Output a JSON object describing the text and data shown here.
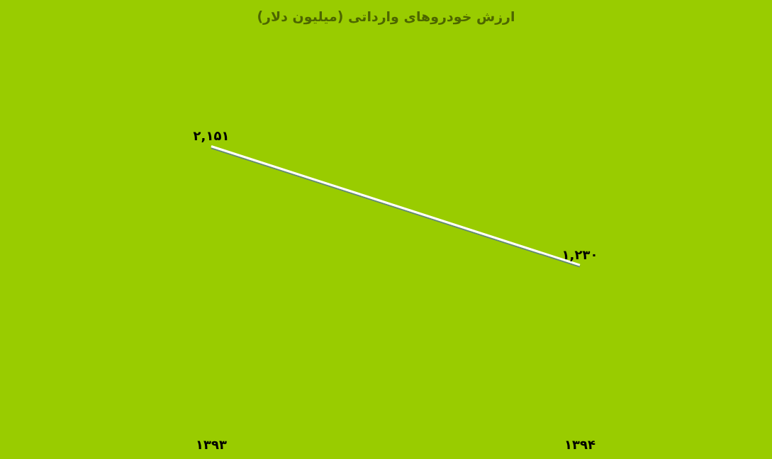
{
  "chart_data": {
    "type": "line",
    "title": "ارزش خودروهای وارداتی (میلیون دلار)",
    "categories": [
      "۱۳۹۳",
      "۱۳۹۴"
    ],
    "series": [
      {
        "color": "#ffffff",
        "values": [
          2151,
          1230
        ],
        "value_labels": [
          "۲,۱۵۱",
          "۱,۲۳۰"
        ]
      }
    ],
    "marker": "none",
    "line_style": "solid",
    "grid": false,
    "tick_labels": "x"
  }
}
